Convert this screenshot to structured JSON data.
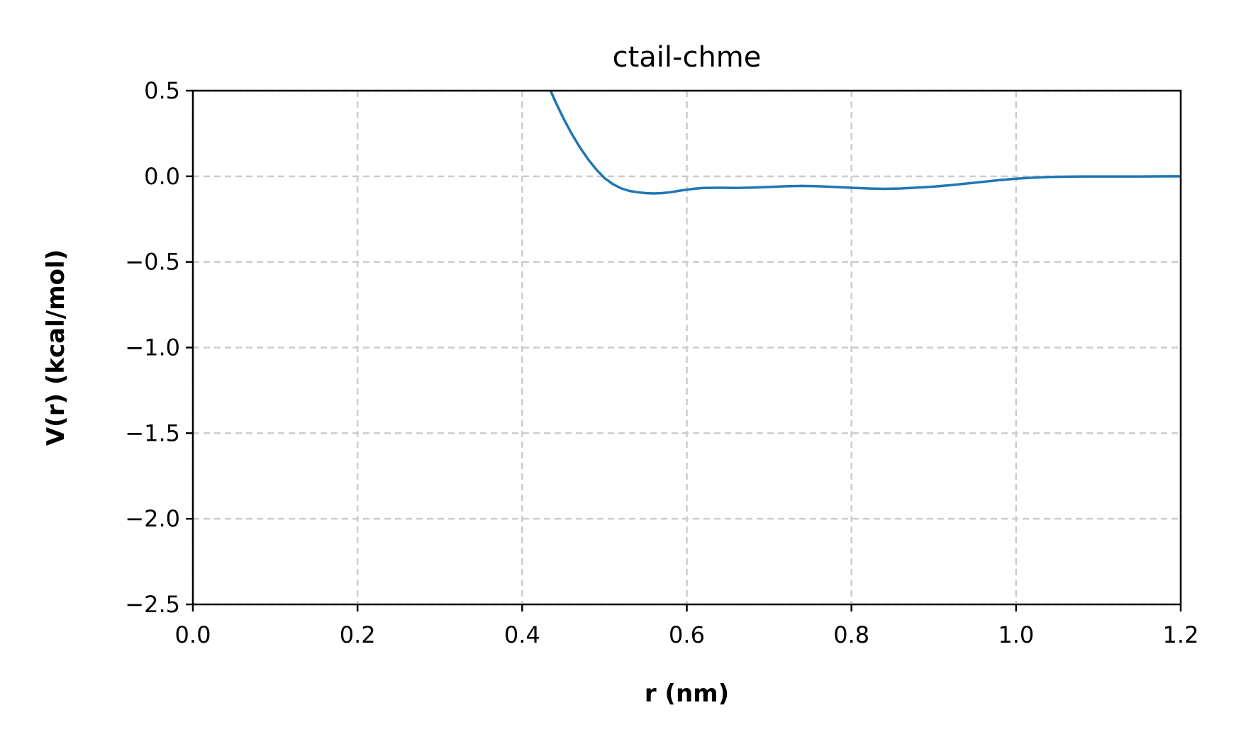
{
  "chart_data": {
    "type": "line",
    "title": "ctail-chme",
    "xlabel": "r (nm)",
    "ylabel": "V(r) (kcal/mol)",
    "xlim": [
      0.0,
      1.2
    ],
    "ylim": [
      -2.5,
      0.5
    ],
    "xticks": [
      "0.0",
      "0.2",
      "0.4",
      "0.6",
      "0.8",
      "1.0",
      "1.2"
    ],
    "yticks": [
      "0.5",
      "0.0",
      "−0.5",
      "−1.0",
      "−1.5",
      "−2.0",
      "−2.5"
    ],
    "grid": true,
    "series": [
      {
        "color": "#1f77b4",
        "x": [
          0.43,
          0.44,
          0.45,
          0.46,
          0.47,
          0.48,
          0.49,
          0.5,
          0.51,
          0.52,
          0.53,
          0.54,
          0.55,
          0.56,
          0.57,
          0.58,
          0.59,
          0.6,
          0.61,
          0.62,
          0.64,
          0.66,
          0.68,
          0.7,
          0.72,
          0.74,
          0.76,
          0.78,
          0.8,
          0.82,
          0.84,
          0.86,
          0.88,
          0.9,
          0.92,
          0.94,
          0.96,
          0.98,
          1.0,
          1.02,
          1.04,
          1.06,
          1.08,
          1.1,
          1.12,
          1.15,
          1.18,
          1.2
        ],
        "y": [
          0.55,
          0.44,
          0.34,
          0.25,
          0.17,
          0.1,
          0.04,
          -0.01,
          -0.045,
          -0.07,
          -0.085,
          -0.093,
          -0.098,
          -0.1,
          -0.098,
          -0.093,
          -0.085,
          -0.078,
          -0.072,
          -0.068,
          -0.067,
          -0.068,
          -0.066,
          -0.062,
          -0.058,
          -0.056,
          -0.058,
          -0.062,
          -0.067,
          -0.071,
          -0.073,
          -0.071,
          -0.066,
          -0.06,
          -0.052,
          -0.042,
          -0.032,
          -0.022,
          -0.014,
          -0.008,
          -0.004,
          -0.002,
          -0.001,
          -0.001,
          -0.001,
          -0.001,
          0.0,
          0.0
        ]
      }
    ]
  }
}
